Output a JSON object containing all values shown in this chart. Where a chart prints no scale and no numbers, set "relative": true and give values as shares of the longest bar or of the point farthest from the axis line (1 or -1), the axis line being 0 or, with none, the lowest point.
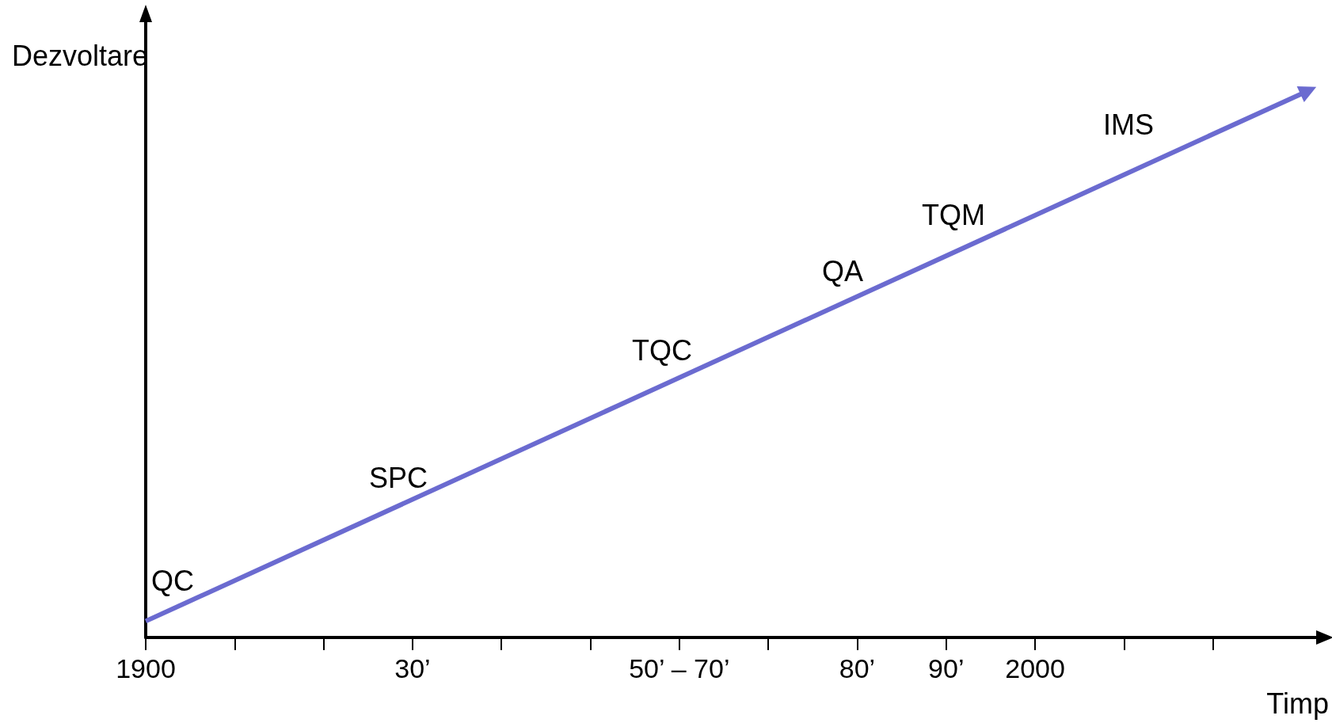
{
  "chart_data": {
    "type": "line",
    "relative": true,
    "xlabel": "Timp",
    "ylabel": "Dezvoltare",
    "categories": [
      "1900",
      null,
      null,
      "30’",
      null,
      null,
      "50’ – 70’",
      null,
      "80’",
      "90’",
      "2000",
      null,
      null,
      null
    ],
    "series": [
      {
        "color": "#6b6bd0",
        "values": [
          0.03,
          null,
          null,
          null,
          null,
          null,
          null,
          null,
          null,
          null,
          null,
          null,
          null,
          1
        ]
      }
    ],
    "annotations": [
      "QC",
      "SPC",
      "TQC",
      "QA",
      "TQM",
      "IMS"
    ],
    "grid": false
  }
}
